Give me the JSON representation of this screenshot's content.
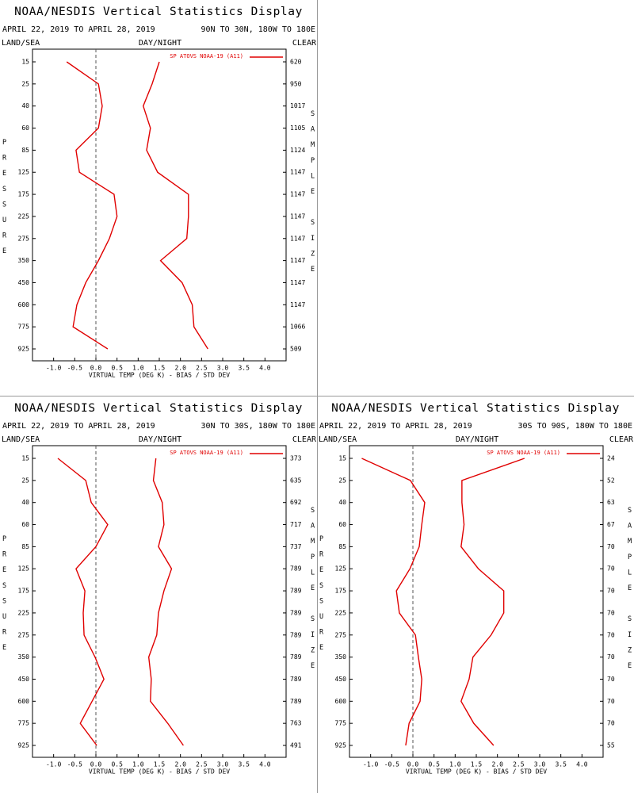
{
  "chart_data": [
    {
      "type": "line",
      "title": "NOAA/NESDIS Vertical Statistics Display",
      "date_range": "APRIL 22, 2019 TO APRIL 28, 2019",
      "region": "90N TO 30N, 180W TO 180E",
      "land_sea": "LAND/SEA",
      "day_night": "DAY/NIGHT",
      "sky": "CLEAR",
      "y_label": "PRESSURE",
      "y2_label": "SAMPLE SIZE",
      "x_label": "VIRTUAL TEMP (DEG K) - BIAS / STD DEV",
      "categories": [
        "15",
        "25",
        "40",
        "60",
        "85",
        "125",
        "175",
        "225",
        "275",
        "350",
        "450",
        "600",
        "775",
        "925"
      ],
      "sample_size": [
        620,
        950,
        1017,
        1105,
        1124,
        1147,
        1147,
        1147,
        1147,
        1147,
        1147,
        1147,
        1066,
        509
      ],
      "series": [
        {
          "name": "SP ATOVS NOAA-19 (A11)",
          "color": "#e00000",
          "values": [
            -0.69,
            0.06,
            0.15,
            0.06,
            -0.47,
            -0.39,
            0.43,
            0.5,
            0.32,
            0.06,
            -0.24,
            -0.45,
            -0.54,
            0.28
          ]
        },
        {
          "color": "#e00000",
          "values": [
            1.5,
            1.33,
            1.12,
            1.29,
            1.2,
            1.46,
            2.19,
            2.19,
            2.15,
            1.53,
            2.04,
            2.28,
            2.32,
            2.65
          ]
        }
      ],
      "xlim": [
        -1.5,
        4.5
      ],
      "xticks": [
        {
          "value": -1,
          "label": "-1.0"
        },
        -0.5,
        {
          "value": 0,
          "label": "0.0"
        },
        0.5,
        {
          "value": 1,
          "label": "1.0"
        },
        1.5,
        {
          "value": 2,
          "label": "2.0"
        },
        2.5,
        {
          "value": 3,
          "label": "3.0"
        },
        3.5,
        {
          "value": 4,
          "label": "4.0"
        }
      ]
    },
    {
      "type": "line",
      "title": "NOAA/NESDIS Vertical Statistics Display",
      "date_range": "APRIL 22, 2019 TO APRIL 28, 2019",
      "region": "30N TO 30S, 180W TO 180E",
      "land_sea": "LAND/SEA",
      "day_night": "DAY/NIGHT",
      "sky": "CLEAR",
      "y_label": "PRESSURE",
      "y2_label": "SAMPLE SIZE",
      "x_label": "VIRTUAL TEMP (DEG K) - BIAS / STD DEV",
      "categories": [
        "15",
        "25",
        "40",
        "60",
        "85",
        "125",
        "175",
        "225",
        "275",
        "350",
        "450",
        "600",
        "775",
        "925"
      ],
      "sample_size": [
        373,
        635,
        692,
        717,
        737,
        789,
        789,
        789,
        789,
        789,
        789,
        789,
        763,
        491
      ],
      "series": [
        {
          "name": "SP ATOVS NOAA-19 (A11)",
          "color": "#e00000",
          "values": [
            -0.9,
            -0.24,
            -0.11,
            0.28,
            0.0,
            -0.47,
            -0.26,
            -0.3,
            -0.28,
            -0.02,
            0.19,
            -0.09,
            -0.37,
            0.02
          ]
        },
        {
          "color": "#e00000",
          "values": [
            1.42,
            1.36,
            1.57,
            1.61,
            1.48,
            1.79,
            1.61,
            1.48,
            1.44,
            1.25,
            1.31,
            1.29,
            1.7,
            2.07
          ]
        }
      ],
      "xlim": [
        -1.5,
        4.5
      ],
      "xticks": [
        {
          "value": -1,
          "label": "-1.0"
        },
        -0.5,
        {
          "value": 0,
          "label": "0.0"
        },
        0.5,
        {
          "value": 1,
          "label": "1.0"
        },
        1.5,
        {
          "value": 2,
          "label": "2.0"
        },
        2.5,
        {
          "value": 3,
          "label": "3.0"
        },
        3.5,
        {
          "value": 4,
          "label": "4.0"
        }
      ]
    },
    {
      "type": "line",
      "title": "NOAA/NESDIS Vertical Statistics Display",
      "date_range": "APRIL 22, 2019 TO APRIL 28, 2019",
      "region": "30S TO 90S, 180W TO 180E",
      "land_sea": "LAND/SEA",
      "day_night": "DAY/NIGHT",
      "sky": "CLEAR",
      "y_label": "PRESSURE",
      "y2_label": "SAMPLE SIZE",
      "x_label": "VIRTUAL TEMP (DEG K) - BIAS / STD DEV",
      "categories": [
        "15",
        "25",
        "40",
        "60",
        "85",
        "125",
        "175",
        "225",
        "275",
        "350",
        "450",
        "600",
        "775",
        "925"
      ],
      "sample_size": [
        24,
        52,
        63,
        67,
        70,
        70,
        70,
        70,
        70,
        70,
        70,
        70,
        70,
        55
      ],
      "series": [
        {
          "name": "SP ATOVS NOAA-19 (A11)",
          "color": "#e00000",
          "values": [
            -1.21,
            -0.06,
            0.28,
            0.21,
            0.15,
            -0.07,
            -0.39,
            -0.32,
            0.06,
            0.13,
            0.21,
            0.17,
            -0.09,
            -0.17
          ]
        },
        {
          "color": "#e00000",
          "values": [
            2.64,
            1.16,
            1.16,
            1.21,
            1.14,
            1.55,
            2.15,
            2.15,
            1.85,
            1.42,
            1.33,
            1.14,
            1.44,
            1.91
          ]
        }
      ],
      "xlim": [
        -1.5,
        4.5
      ],
      "xticks": [
        {
          "value": -1,
          "label": "-1.0"
        },
        -0.5,
        {
          "value": 0,
          "label": "0.0"
        },
        0.5,
        {
          "value": 1,
          "label": "1.0"
        },
        1.5,
        {
          "value": 2,
          "label": "2.0"
        },
        2.5,
        {
          "value": 3,
          "label": "3.0"
        },
        3.5,
        {
          "value": 4,
          "label": "4.0"
        }
      ]
    }
  ]
}
